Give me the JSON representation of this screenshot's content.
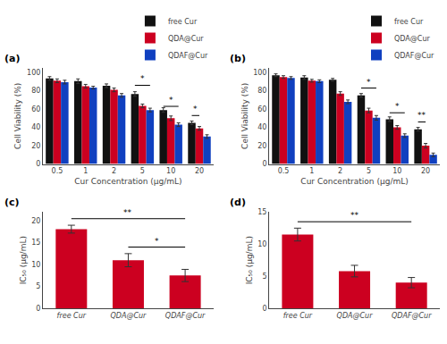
{
  "chart_data": [
    {
      "type": "bar",
      "title": "(a)",
      "xlabel": "Cur Concentration (μg/mL)",
      "ylabel": "Cell Viability (%)",
      "categories": [
        "0.5",
        "1",
        "2",
        "5",
        "10",
        "20"
      ],
      "series": [
        {
          "name": "free Cur",
          "color": "#111111",
          "values": [
            93.5,
            90.5,
            85.5,
            76.5,
            59.0,
            45.0
          ],
          "errors": [
            2.0,
            2.5,
            2.0,
            2.5,
            2.5,
            2.0
          ]
        },
        {
          "name": "QDA@Cur",
          "color": "#CC0020",
          "values": [
            91.0,
            85.0,
            81.0,
            63.5,
            50.0,
            39.0
          ],
          "errors": [
            2.0,
            2.0,
            2.0,
            2.0,
            2.5,
            2.0
          ]
        },
        {
          "name": "QDAF@Cur",
          "color": "#1040C0",
          "values": [
            89.5,
            83.5,
            75.0,
            59.0,
            43.0,
            30.0
          ],
          "errors": [
            2.0,
            1.5,
            2.0,
            2.0,
            2.0,
            2.0
          ]
        }
      ],
      "ylim": [
        0,
        105
      ],
      "yticks": [
        0,
        20,
        40,
        60,
        80,
        100
      ],
      "grid": false,
      "legend": "upper right",
      "annotations": [
        {
          "text": "*",
          "y": 86,
          "from": {
            "category": "5",
            "series": "free Cur"
          },
          "to": {
            "category": "5",
            "series": "QDAF@Cur"
          }
        },
        {
          "text": "*",
          "y": 63,
          "from": {
            "category": "10",
            "series": "free Cur"
          },
          "to": {
            "category": "10",
            "series": "QDAF@Cur"
          }
        },
        {
          "text": "*",
          "y": 53,
          "from": {
            "category": "20",
            "series": "free Cur"
          },
          "to": {
            "category": "20",
            "series": "QDA@Cur"
          }
        }
      ]
    },
    {
      "type": "bar",
      "title": "(b)",
      "xlabel": "Cur Concentration (μg/mL)",
      "ylabel": "Cell Viability (%)",
      "categories": [
        "0.5",
        "1",
        "2",
        "5",
        "10",
        "20"
      ],
      "series": [
        {
          "name": "free Cur",
          "color": "#111111",
          "values": [
            97.0,
            94.5,
            92.0,
            75.0,
            49.0,
            38.0
          ],
          "errors": [
            1.5,
            2.0,
            1.5,
            2.0,
            2.5,
            2.0
          ]
        },
        {
          "name": "QDA@Cur",
          "color": "#CC0020",
          "values": [
            95.0,
            91.0,
            77.0,
            58.5,
            40.0,
            20.0
          ],
          "errors": [
            1.5,
            1.5,
            2.0,
            2.5,
            2.0,
            2.5
          ]
        },
        {
          "name": "QDAF@Cur",
          "color": "#1040C0",
          "values": [
            94.0,
            90.5,
            68.0,
            50.5,
            31.0,
            10.0
          ],
          "errors": [
            1.5,
            1.5,
            2.0,
            2.5,
            2.0,
            2.0
          ]
        }
      ],
      "ylim": [
        0,
        105
      ],
      "yticks": [
        0,
        20,
        40,
        60,
        80,
        100
      ],
      "grid": false,
      "legend": "upper right",
      "annotations": [
        {
          "text": "*",
          "y": 83,
          "from": {
            "category": "5",
            "series": "free Cur"
          },
          "to": {
            "category": "5",
            "series": "QDAF@Cur"
          }
        },
        {
          "text": "*",
          "y": 56,
          "from": {
            "category": "10",
            "series": "free Cur"
          },
          "to": {
            "category": "10",
            "series": "QDAF@Cur"
          }
        },
        {
          "text": "**",
          "y": 46,
          "from": {
            "category": "20",
            "series": "free Cur"
          },
          "to": {
            "category": "20",
            "series": "QDA@Cur"
          }
        }
      ]
    },
    {
      "type": "bar",
      "title": "(c)",
      "ylabel": "IC₅₀ (μg/mL)",
      "categories": [
        "free Cur",
        "QDA@Cur",
        "QDAF@Cur"
      ],
      "values": [
        18.1,
        11.0,
        7.5
      ],
      "errors": [
        0.9,
        1.5,
        1.4
      ],
      "color": "#CC0020",
      "ylim": [
        0,
        22
      ],
      "yticks": [
        0,
        5,
        10,
        15,
        20
      ],
      "grid": false,
      "annotations": [
        {
          "text": "**",
          "y": 20.5,
          "from": "free Cur",
          "to": "QDAF@Cur"
        },
        {
          "text": "*",
          "y": 14.0,
          "from": "QDA@Cur",
          "to": "QDAF@Cur"
        }
      ]
    },
    {
      "type": "bar",
      "title": "(d)",
      "ylabel": "IC₅₀ (μg/mL)",
      "categories": [
        "free Cur",
        "QDA@Cur",
        "QDAF@Cur"
      ],
      "values": [
        11.5,
        5.8,
        4.0
      ],
      "errors": [
        1.0,
        0.9,
        0.8
      ],
      "color": "#CC0020",
      "ylim": [
        0,
        15
      ],
      "yticks": [
        0,
        5,
        10,
        15
      ],
      "grid": false,
      "annotations": [
        {
          "text": "**",
          "y": 13.5,
          "from": "free Cur",
          "to": "QDAF@Cur"
        }
      ]
    }
  ]
}
